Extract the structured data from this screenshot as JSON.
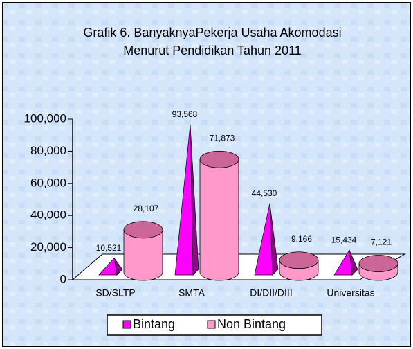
{
  "chart_data": {
    "type": "bar3d",
    "title": [
      "Grafik 6. BanyaknyaPekerja Usaha Akomodasi",
      "Menurut Pendidikan Tahun 2011"
    ],
    "categories": [
      "SD/SLTP",
      "SMTA",
      "DI/DII/DIII",
      "Universitas"
    ],
    "series": [
      {
        "name": "Bintang",
        "color": "#ff00ff",
        "shape": "pyramid",
        "values": [
          10521,
          93568,
          44530,
          15434
        ],
        "value_labels": [
          "10,521",
          "93,568",
          "44,530",
          "15,434"
        ]
      },
      {
        "name": "Non Bintang",
        "color": "#ff99cc",
        "shape": "cylinder",
        "values": [
          28107,
          71873,
          9166,
          7121
        ],
        "value_labels": [
          "28,107",
          "71,873",
          "9,166",
          "7,121"
        ]
      }
    ],
    "ylim": [
      0,
      100000
    ],
    "yticks": [
      0,
      {
        "value": 20000,
        "label": "20,000"
      },
      {
        "value": 40000,
        "label": "40,000"
      },
      {
        "value": 60000,
        "label": "60,000"
      },
      {
        "value": 80000,
        "label": "80,000"
      },
      {
        "value": 100000,
        "label": "100,000"
      }
    ],
    "legend": "bottom"
  }
}
